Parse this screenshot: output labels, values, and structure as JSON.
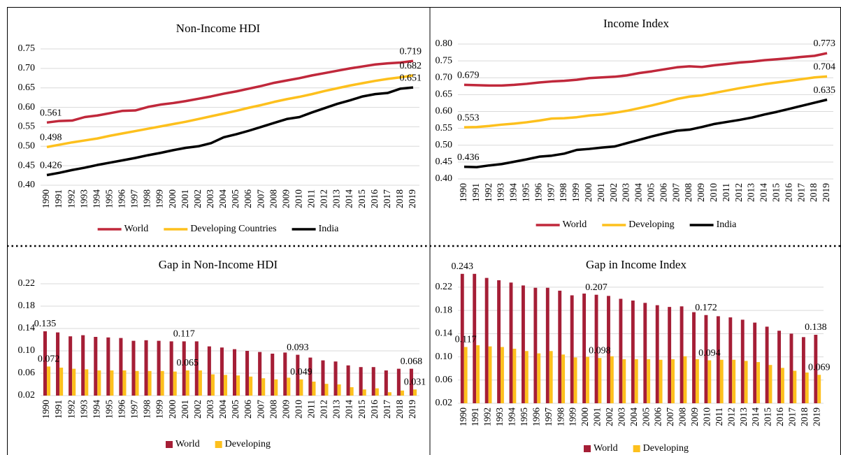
{
  "chart_data": [
    {
      "type": "line",
      "title": "Non-Income HDI",
      "categories": [
        "1990",
        "1991",
        "1992",
        "1993",
        "1994",
        "1995",
        "1996",
        "1997",
        "1998",
        "1999",
        "2000",
        "2001",
        "2002",
        "2003",
        "2004",
        "2005",
        "2006",
        "2007",
        "2008",
        "2009",
        "2010",
        "2011",
        "2012",
        "2013",
        "2014",
        "2015",
        "2016",
        "2017",
        "2018",
        "2019"
      ],
      "series": [
        {
          "name": "World",
          "color": "#c0283b",
          "values": [
            0.561,
            0.565,
            0.566,
            0.575,
            0.579,
            0.585,
            0.591,
            0.592,
            0.601,
            0.607,
            0.611,
            0.616,
            0.622,
            0.628,
            0.635,
            0.641,
            0.648,
            0.655,
            0.663,
            0.669,
            0.675,
            0.682,
            0.688,
            0.694,
            0.7,
            0.705,
            0.71,
            0.713,
            0.715,
            0.719
          ]
        },
        {
          "name": "Developing Countries",
          "color": "#fdc01d",
          "values": [
            0.498,
            0.504,
            0.51,
            0.515,
            0.52,
            0.527,
            0.533,
            0.539,
            0.545,
            0.551,
            0.557,
            0.563,
            0.57,
            0.577,
            0.584,
            0.591,
            0.599,
            0.606,
            0.614,
            0.621,
            0.627,
            0.634,
            0.642,
            0.649,
            0.656,
            0.662,
            0.668,
            0.673,
            0.677,
            0.682
          ]
        },
        {
          "name": "India",
          "color": "#000000",
          "values": [
            0.426,
            0.432,
            0.439,
            0.445,
            0.452,
            0.458,
            0.464,
            0.47,
            0.477,
            0.483,
            0.49,
            0.496,
            0.5,
            0.508,
            0.523,
            0.531,
            0.54,
            0.55,
            0.56,
            0.57,
            0.575,
            0.587,
            0.598,
            0.609,
            0.618,
            0.628,
            0.634,
            0.637,
            0.648,
            0.651
          ]
        }
      ],
      "labeled_points": [
        0,
        29
      ],
      "ylim": [
        0.4,
        0.75
      ],
      "yticks": [
        {
          "value": 0.4,
          "label": "0.40"
        },
        {
          "value": 0.45,
          "label": "0.45"
        },
        {
          "value": 0.5,
          "label": "0.50"
        },
        {
          "value": 0.55,
          "label": "0.55"
        },
        {
          "value": 0.6,
          "label": "0.60"
        },
        {
          "value": 0.65,
          "label": "0.65"
        },
        {
          "value": 0.7,
          "label": "0.70"
        },
        {
          "value": 0.75,
          "label": "0.75"
        }
      ],
      "grid": true
    },
    {
      "type": "line",
      "title": "Income Index",
      "categories": [
        "1990",
        "1991",
        "1992",
        "1993",
        "1994",
        "1995",
        "1996",
        "1997",
        "1998",
        "1999",
        "2000",
        "2001",
        "2002",
        "2003",
        "2004",
        "2005",
        "2006",
        "2007",
        "2008",
        "2009",
        "2010",
        "2011",
        "2012",
        "2013",
        "2014",
        "2015",
        "2016",
        "2017",
        "2018",
        "2019"
      ],
      "series": [
        {
          "name": "World",
          "color": "#c0283b",
          "values": [
            0.679,
            0.678,
            0.677,
            0.677,
            0.679,
            0.682,
            0.686,
            0.689,
            0.691,
            0.694,
            0.699,
            0.701,
            0.703,
            0.707,
            0.714,
            0.719,
            0.725,
            0.731,
            0.734,
            0.732,
            0.737,
            0.741,
            0.745,
            0.748,
            0.752,
            0.755,
            0.758,
            0.762,
            0.765,
            0.773
          ]
        },
        {
          "name": "Developing",
          "color": "#fdc01d",
          "values": [
            0.553,
            0.554,
            0.557,
            0.561,
            0.564,
            0.568,
            0.573,
            0.579,
            0.58,
            0.583,
            0.588,
            0.591,
            0.596,
            0.602,
            0.61,
            0.618,
            0.627,
            0.637,
            0.644,
            0.648,
            0.655,
            0.662,
            0.669,
            0.675,
            0.681,
            0.686,
            0.691,
            0.696,
            0.701,
            0.704
          ]
        },
        {
          "name": "India",
          "color": "#000000",
          "values": [
            0.436,
            0.435,
            0.44,
            0.444,
            0.451,
            0.458,
            0.466,
            0.469,
            0.475,
            0.486,
            0.489,
            0.493,
            0.496,
            0.506,
            0.516,
            0.526,
            0.535,
            0.543,
            0.546,
            0.554,
            0.563,
            0.569,
            0.575,
            0.582,
            0.591,
            0.599,
            0.608,
            0.617,
            0.626,
            0.635
          ]
        }
      ],
      "labeled_points": [
        0,
        29
      ],
      "ylim": [
        0.4,
        0.8
      ],
      "yticks": [
        {
          "value": 0.4,
          "label": "0.40"
        },
        {
          "value": 0.45,
          "label": "0.45"
        },
        {
          "value": 0.5,
          "label": "0.50"
        },
        {
          "value": 0.55,
          "label": "0.55"
        },
        {
          "value": 0.6,
          "label": "0.60"
        },
        {
          "value": 0.65,
          "label": "0.65"
        },
        {
          "value": 0.7,
          "label": "0.70"
        },
        {
          "value": 0.75,
          "label": "0.75"
        },
        {
          "value": 0.8,
          "label": "0.80"
        }
      ],
      "grid": true
    },
    {
      "type": "bar",
      "title": "Gap in Non-Income HDI",
      "categories": [
        "1990",
        "1991",
        "1992",
        "1993",
        "1994",
        "1995",
        "1996",
        "1997",
        "1998",
        "1999",
        "2000",
        "2001",
        "2002",
        "2003",
        "2004",
        "2005",
        "2006",
        "2007",
        "2008",
        "2009",
        "2010",
        "2011",
        "2012",
        "2013",
        "2014",
        "2015",
        "2016",
        "2017",
        "2018",
        "2019"
      ],
      "series": [
        {
          "name": "World",
          "color": "#a51e36",
          "values": [
            0.135,
            0.133,
            0.126,
            0.128,
            0.125,
            0.124,
            0.123,
            0.118,
            0.119,
            0.118,
            0.117,
            0.117,
            0.117,
            0.108,
            0.106,
            0.103,
            0.1,
            0.098,
            0.095,
            0.097,
            0.093,
            0.088,
            0.083,
            0.081,
            0.074,
            0.071,
            0.071,
            0.065,
            0.068,
            0.068
          ]
        },
        {
          "name": "Developing",
          "color": "#fdc01d",
          "values": [
            0.072,
            0.07,
            0.068,
            0.067,
            0.065,
            0.065,
            0.065,
            0.064,
            0.064,
            0.064,
            0.063,
            0.065,
            0.065,
            0.058,
            0.057,
            0.056,
            0.054,
            0.051,
            0.049,
            0.052,
            0.049,
            0.045,
            0.041,
            0.04,
            0.035,
            0.031,
            0.033,
            0.026,
            0.029,
            0.031
          ]
        }
      ],
      "labeled_points": [
        0,
        11,
        20,
        29
      ],
      "ylim": [
        0.02,
        0.24
      ],
      "yticks": [
        {
          "value": 0.02,
          "label": "0.02"
        },
        {
          "value": 0.06,
          "label": "0.06"
        },
        {
          "value": 0.1,
          "label": "0.10"
        },
        {
          "value": 0.14,
          "label": "0.14"
        },
        {
          "value": 0.18,
          "label": "0.18"
        },
        {
          "value": 0.22,
          "label": "0.22"
        }
      ],
      "grid": true
    },
    {
      "type": "bar",
      "title": "Gap in Income Index",
      "categories": [
        "1990",
        "1991",
        "1992",
        "1993",
        "1994",
        "1995",
        "1996",
        "1997",
        "1998",
        "1999",
        "2000",
        "2001",
        "2002",
        "2003",
        "2004",
        "2005",
        "2006",
        "2007",
        "2008",
        "2009",
        "2010",
        "2011",
        "2012",
        "2013",
        "2014",
        "2015",
        "2016",
        "2017",
        "2018",
        "2019"
      ],
      "series": [
        {
          "name": "World",
          "color": "#a51e36",
          "values": [
            0.243,
            0.243,
            0.236,
            0.232,
            0.228,
            0.223,
            0.219,
            0.219,
            0.214,
            0.206,
            0.209,
            0.207,
            0.205,
            0.2,
            0.197,
            0.193,
            0.189,
            0.186,
            0.187,
            0.177,
            0.172,
            0.17,
            0.168,
            0.164,
            0.159,
            0.152,
            0.145,
            0.14,
            0.134,
            0.138
          ]
        },
        {
          "name": "Developing",
          "color": "#fdc01d",
          "values": [
            0.117,
            0.12,
            0.118,
            0.117,
            0.114,
            0.11,
            0.106,
            0.11,
            0.104,
            0.099,
            0.1,
            0.098,
            0.101,
            0.096,
            0.096,
            0.096,
            0.095,
            0.096,
            0.101,
            0.096,
            0.094,
            0.095,
            0.095,
            0.093,
            0.091,
            0.086,
            0.081,
            0.076,
            0.073,
            0.069
          ]
        }
      ],
      "labeled_points": [
        0,
        11,
        20,
        29
      ],
      "ylim": [
        0.02,
        0.25
      ],
      "yticks": [
        {
          "value": 0.02,
          "label": "0.02"
        },
        {
          "value": 0.06,
          "label": "0.06"
        },
        {
          "value": 0.1,
          "label": "0.10"
        },
        {
          "value": 0.14,
          "label": "0.14"
        },
        {
          "value": 0.18,
          "label": "0.18"
        },
        {
          "value": 0.22,
          "label": "0.22"
        }
      ],
      "grid": true
    }
  ]
}
